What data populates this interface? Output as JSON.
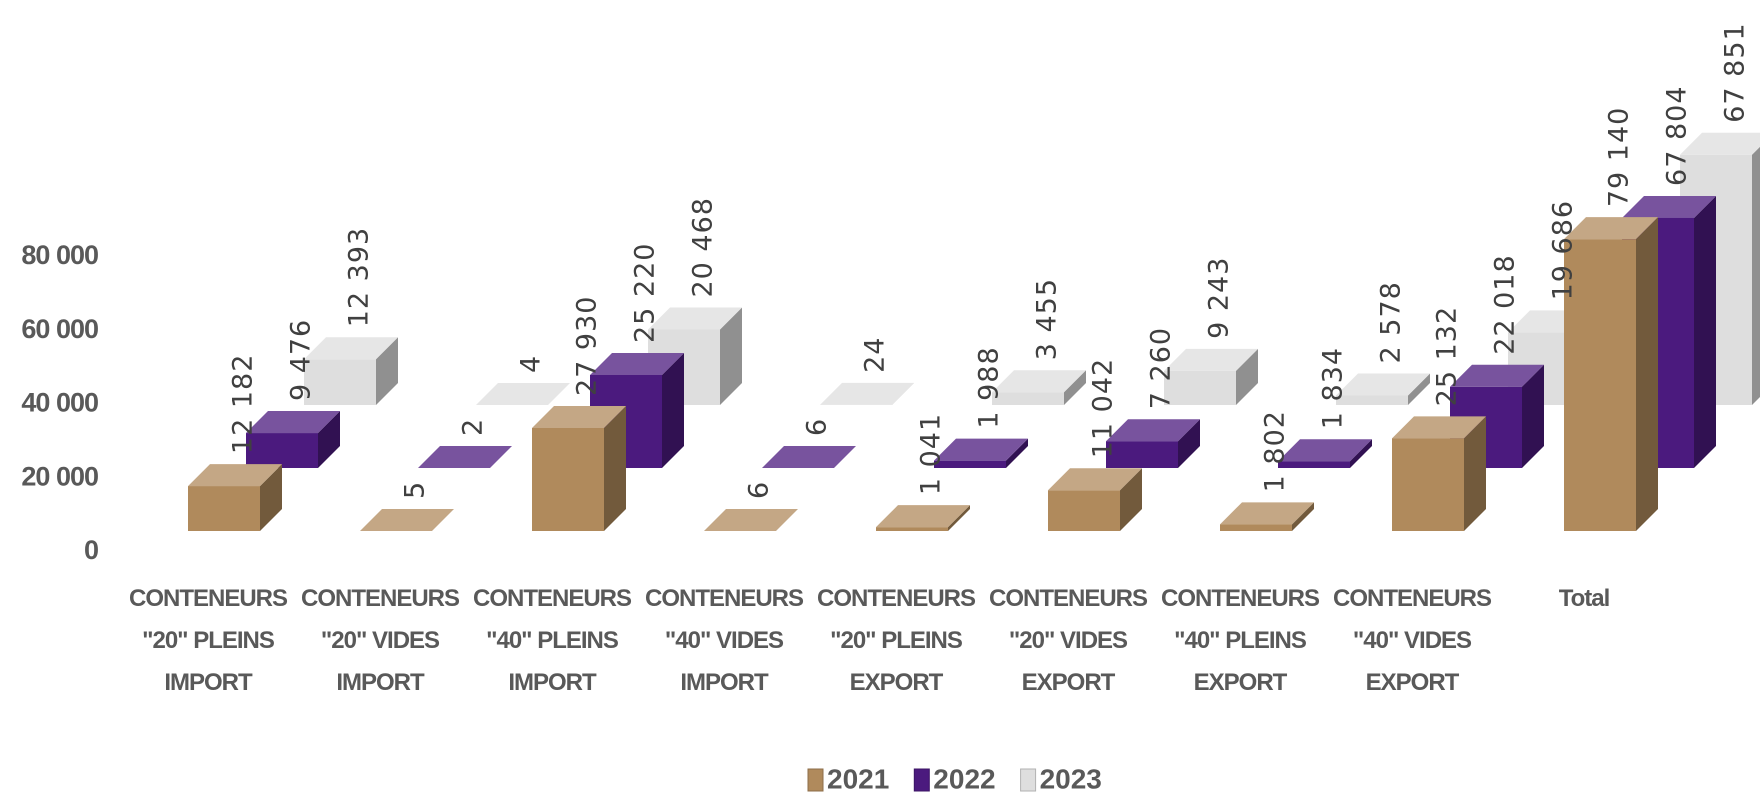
{
  "chart_data": {
    "type": "bar3d",
    "categories": [
      "CONTENEURS \"20\" PLEINS IMPORT",
      "CONTENEURS \"20\" VIDES IMPORT",
      "CONTENEURS \"40\" PLEINS IMPORT",
      "CONTENEURS \"40\" VIDES IMPORT",
      "CONTENEURS \"20\" PLEINS EXPORT",
      "CONTENEURS \"20\" VIDES EXPORT",
      "CONTENEURS \"40\" PLEINS EXPORT",
      "CONTENEURS \"40\" VIDES EXPORT",
      "Total"
    ],
    "series": [
      {
        "name": "2021",
        "color": "#b08a5c",
        "values": [
          12182,
          5,
          27930,
          6,
          1041,
          11042,
          1802,
          25132,
          79140
        ],
        "value_labels": [
          "12 182",
          "5",
          "27 930",
          "6",
          "1 041",
          "11 042",
          "1 802",
          "25 132",
          "79 140"
        ]
      },
      {
        "name": "2022",
        "color": "#4b1a7e",
        "values": [
          9476,
          2,
          25220,
          6,
          1988,
          7260,
          1834,
          22018,
          67804
        ],
        "value_labels": [
          "9 476",
          "2",
          "25 220",
          "6",
          "1 988",
          "7 260",
          "1 834",
          "22 018",
          "67 804"
        ]
      },
      {
        "name": "2023",
        "color": "#dedede",
        "values": [
          12393,
          4,
          20468,
          24,
          3455,
          9243,
          2578,
          19686,
          67851
        ],
        "value_labels": [
          "12 393",
          "4",
          "20 468",
          "24",
          "3 455",
          "9 243",
          "2 578",
          "19 686",
          "67 851"
        ]
      }
    ],
    "ylim": [
      0,
      80000
    ],
    "yticks": [
      0,
      {
        "value": 20000,
        "label": "20 000"
      },
      {
        "value": 40000,
        "label": "40 000"
      },
      {
        "value": 60000,
        "label": "60 000"
      },
      {
        "value": 80000,
        "label": "80 000"
      }
    ],
    "legend": "bottom"
  }
}
